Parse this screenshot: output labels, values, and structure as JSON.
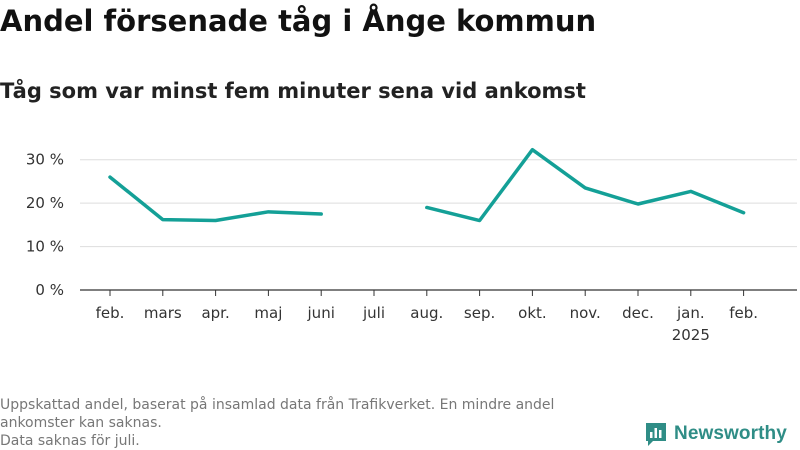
{
  "header": {
    "title": "Andel försenade tåg i Ånge kommun",
    "subtitle": "Tåg som var minst fem minuter sena vid ankomst"
  },
  "footer": {
    "note_line1": "Uppskattad andel, baserat på insamlad data från Trafikverket. En mindre andel ankomster kan saknas.",
    "note_line2": "Data saknas för juli."
  },
  "brand": {
    "name": "Newsworthy",
    "icon": "newsworthy-logo-icon",
    "color": "#2f8d86"
  },
  "chart_data": {
    "type": "line",
    "categories": [
      "feb.",
      "mars",
      "apr.",
      "maj",
      "juni",
      "juli",
      "aug.",
      "sep.",
      "okt.",
      "nov.",
      "dec.",
      "jan.",
      "feb."
    ],
    "category_sublabels": [
      "",
      "",
      "",
      "",
      "",
      "",
      "",
      "",
      "",
      "",
      "",
      "2025",
      ""
    ],
    "series": [
      {
        "values": [
          26,
          16.2,
          16,
          18,
          17.5,
          null,
          19,
          16,
          32.3,
          23.5,
          19.8,
          22.7,
          17.8
        ],
        "color": "#14a097"
      }
    ],
    "ylim": [
      0,
      35
    ],
    "yticks": [
      0,
      10,
      20,
      30
    ],
    "ytick_labels": [
      "0 %",
      "10 %",
      "20 %",
      "30 %"
    ],
    "grid": true,
    "legend": "none"
  }
}
